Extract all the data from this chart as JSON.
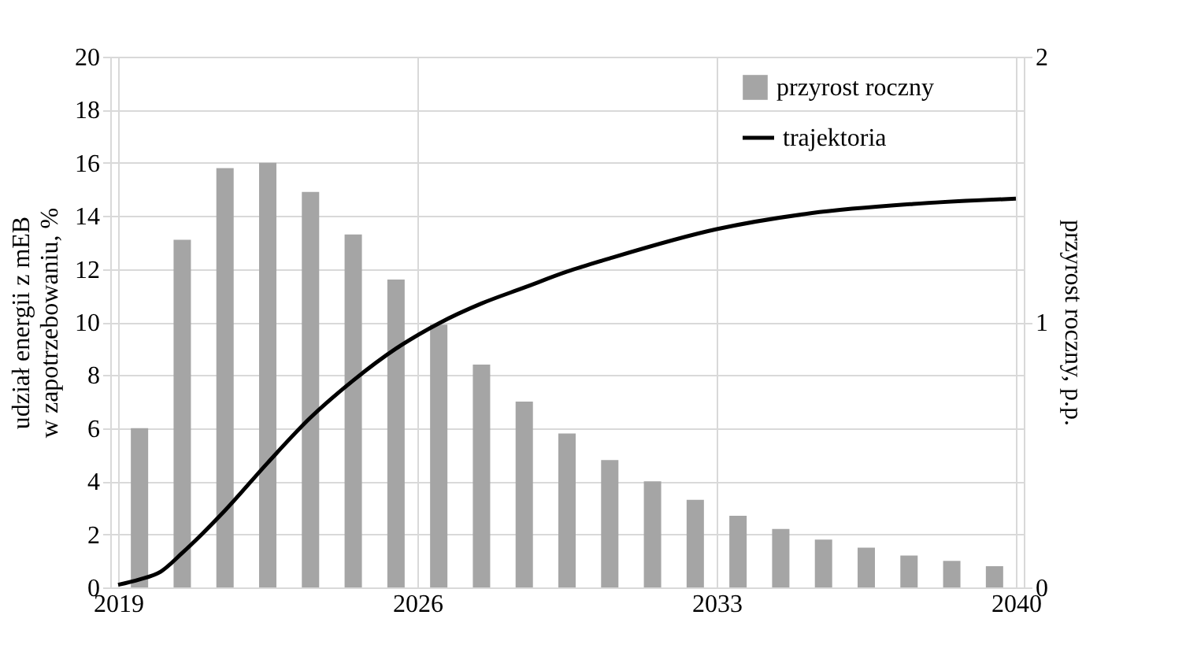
{
  "chart_data": {
    "type": "bar",
    "ylabel": [
      "udział energii z mEB",
      "w zapotrzebowaniu, %"
    ],
    "y2label": "przyrost roczny, p.p.",
    "xlim": [
      2019,
      2040
    ],
    "xticks": [
      2019,
      2026,
      2033,
      2040
    ],
    "ylim": [
      0,
      20
    ],
    "yticks": [
      0,
      2,
      4,
      6,
      8,
      10,
      12,
      14,
      16,
      18,
      20
    ],
    "y2lim": [
      0,
      2
    ],
    "y2ticks": [
      0,
      1,
      2
    ],
    "grid": true,
    "legend": "top right",
    "series": [
      {
        "name": "przyrost roczny",
        "axis": "y2",
        "color": "#a5a5a5",
        "x": [
          2019.5,
          2020.5,
          2021.5,
          2022.5,
          2023.5,
          2024.5,
          2025.5,
          2026.5,
          2027.5,
          2028.5,
          2029.5,
          2030.5,
          2031.5,
          2032.5,
          2033.5,
          2034.5,
          2035.5,
          2036.5,
          2037.5,
          2038.5,
          2039.5
        ],
        "values": [
          0.6,
          1.31,
          1.58,
          1.6,
          1.49,
          1.33,
          1.16,
          0.99,
          0.84,
          0.7,
          0.58,
          0.48,
          0.4,
          0.33,
          0.27,
          0.22,
          0.18,
          0.15,
          0.12,
          0.1,
          0.08
        ]
      },
      {
        "name": "trajektoria",
        "type": "line",
        "color": "#000000",
        "x": [
          2019,
          2019.5,
          2020,
          2020.5,
          2021.5,
          2022.5,
          2023.5,
          2024.5,
          2025.5,
          2026.5,
          2027.5,
          2028.5,
          2029.5,
          2030.5,
          2033,
          2035.2,
          2037.6,
          2040
        ],
        "values": [
          0.1,
          0.3,
          0.6,
          1.3,
          2.9,
          4.7,
          6.4,
          7.8,
          9.0,
          9.95,
          10.7,
          11.3,
          11.9,
          12.4,
          13.5,
          14.1,
          14.45,
          14.65
        ]
      }
    ]
  }
}
